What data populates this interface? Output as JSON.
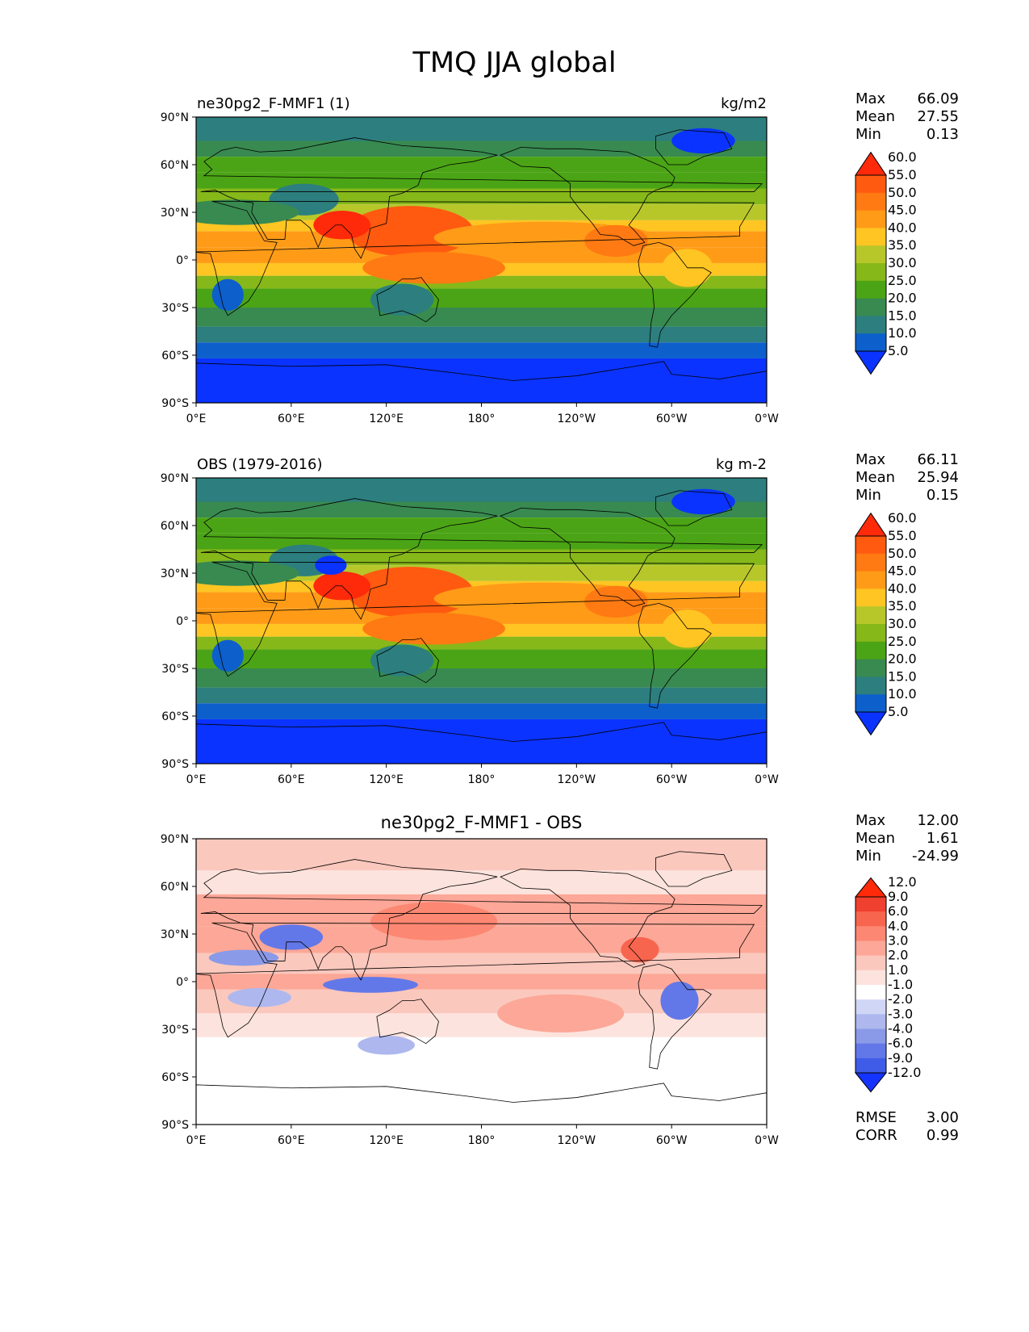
{
  "title": "TMQ JJA global",
  "colorbars": {
    "main": {
      "colors": [
        "#0a33ff",
        "#0d5fcc",
        "#2c7f7e",
        "#388a50",
        "#4ba415",
        "#86b81a",
        "#b7c72a",
        "#ffc522",
        "#ff9b17",
        "#ff7a12",
        "#ff5a10",
        "#ff2a0a"
      ],
      "tick_labels": [
        "5.0",
        "10.0",
        "15.0",
        "20.0",
        "25.0",
        "30.0",
        "35.0",
        "40.0",
        "45.0",
        "50.0",
        "55.0",
        "60.0"
      ]
    },
    "diff": {
      "colors": [
        "#1533ff",
        "#3f5ce8",
        "#6378e8",
        "#8a9ae8",
        "#aeb8ee",
        "#d0d6f6",
        "#ffffff",
        "#fde3dd",
        "#fbc8bd",
        "#fca797",
        "#fc8772",
        "#f8654f",
        "#f04030",
        "#ff2a0a"
      ],
      "tick_labels": [
        "-12.0",
        "-9.0",
        "-6.0",
        "-4.0",
        "-3.0",
        "-2.0",
        "-1.0",
        "1.0",
        "2.0",
        "3.0",
        "4.0",
        "6.0",
        "9.0",
        "12.0"
      ]
    }
  },
  "map_axes": {
    "lat_ticks": [
      "90°N",
      "60°N",
      "30°N",
      "0°",
      "30°S",
      "60°S",
      "90°S"
    ],
    "lon_ticks": [
      "0°E",
      "60°E",
      "120°E",
      "180°",
      "120°W",
      "60°W",
      "0°W"
    ]
  },
  "chart_data": [
    {
      "type": "heatmap",
      "title": "ne30pg2_F-MMF1 (1)",
      "units": "kg/m2",
      "stats": {
        "max": "66.09",
        "mean": "27.55",
        "min": "0.13"
      },
      "xlim": [
        0,
        360
      ],
      "ylim": [
        -90,
        90
      ]
    },
    {
      "type": "heatmap",
      "title": "OBS (1979-2016)",
      "units": "kg m-2",
      "stats": {
        "max": "66.11",
        "mean": "25.94",
        "min": "0.15"
      },
      "xlim": [
        0,
        360
      ],
      "ylim": [
        -90,
        90
      ]
    },
    {
      "type": "heatmap",
      "title": "ne30pg2_F-MMF1 - OBS",
      "stats": {
        "max": "12.00",
        "mean": "1.61",
        "min": "-24.99"
      },
      "rmse": "3.00",
      "corr": "0.99",
      "xlim": [
        0,
        360
      ],
      "ylim": [
        -90,
        90
      ]
    }
  ],
  "stat_labels": {
    "max": "Max",
    "mean": "Mean",
    "min": "Min",
    "rmse": "RMSE",
    "corr": "CORR"
  }
}
